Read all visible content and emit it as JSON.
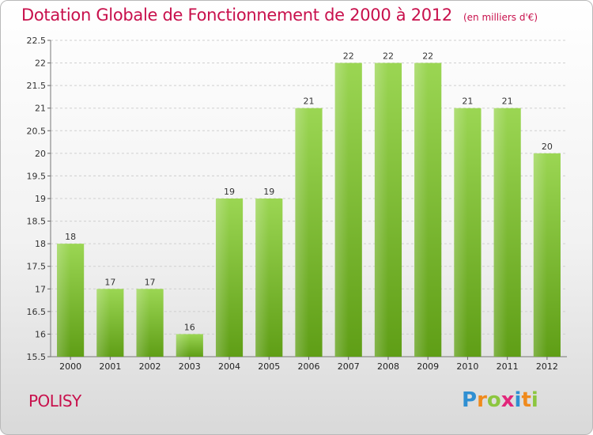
{
  "page": {
    "title": "Dotation Globale de Fonctionnement de 2000 à 2012",
    "unit": "(en milliers d'€)",
    "commune": "POLISY",
    "logo": {
      "text": "Proxiti",
      "letters": [
        {
          "ch": "P",
          "color": "#2f8fd2"
        },
        {
          "ch": "r",
          "color": "#f08a1c"
        },
        {
          "ch": "o",
          "color": "#8cc63f"
        },
        {
          "ch": "x",
          "color": "#e2267a"
        },
        {
          "ch": "i",
          "color": "#2f8fd2"
        },
        {
          "ch": "t",
          "color": "#f08a1c"
        },
        {
          "ch": "i",
          "color": "#8cc63f"
        }
      ]
    }
  },
  "chart_data": {
    "type": "bar",
    "title": "Dotation Globale de Fonctionnement de 2000 à 2012",
    "ylabel": "(en milliers d'€)",
    "categories": [
      "2000",
      "2001",
      "2002",
      "2003",
      "2004",
      "2005",
      "2006",
      "2007",
      "2008",
      "2009",
      "2010",
      "2011",
      "2012"
    ],
    "values": [
      18,
      17,
      17,
      16,
      19,
      19,
      21,
      22,
      22,
      22,
      21,
      21,
      20
    ],
    "ylim": [
      15.5,
      22.5
    ],
    "yticks": [
      "15.5",
      "16",
      "16.5",
      "17",
      "17.5",
      "18",
      "18.5",
      "19",
      "19.5",
      "20",
      "20.5",
      "21",
      "21.5",
      "22",
      "22.5"
    ],
    "grid": true,
    "bar_color": "#7cc13a"
  }
}
